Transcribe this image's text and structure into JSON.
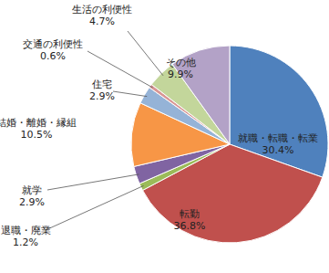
{
  "chart_data": {
    "type": "pie",
    "categories": [
      "就職・転職・転業",
      "転勤",
      "退職・廃業",
      "就学",
      "結婚・離婚・縁組",
      "住宅",
      "交通の利便性",
      "生活の利便性",
      "その他"
    ],
    "values": [
      30.4,
      36.8,
      1.2,
      2.9,
      10.5,
      2.9,
      0.6,
      4.7,
      9.9
    ],
    "value_labels": [
      "30.4%",
      "36.8%",
      "1.2%",
      "2.9%",
      "10.5%",
      "2.9%",
      "0.6%",
      "4.7%",
      "9.9%"
    ],
    "colors": [
      "#4f81bd",
      "#c0504d",
      "#9bbb59",
      "#8064a2",
      "#f79646",
      "#95b3d7",
      "#d99694",
      "#c3d69b",
      "#b3a2c7"
    ],
    "data_labels": true
  }
}
